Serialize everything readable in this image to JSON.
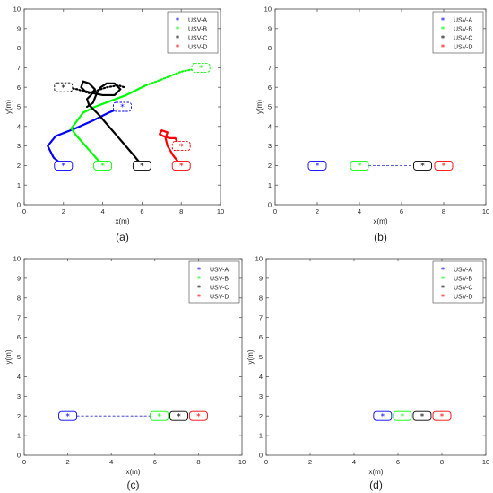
{
  "chart_data": [
    {
      "id": "a",
      "type": "line",
      "caption": "(a)",
      "xlabel": "x(m)",
      "ylabel": "y(m)",
      "xlim": [
        0,
        10
      ],
      "ylim": [
        0,
        10
      ],
      "xticks": [
        0,
        2,
        4,
        6,
        8,
        10
      ],
      "yticks": [
        0,
        1,
        2,
        3,
        4,
        5,
        6,
        7,
        8,
        9,
        10
      ],
      "grid": false,
      "legend_position": "top-right",
      "legend": [
        "USV-A",
        "USV-B",
        "USV-C",
        "USV-D"
      ],
      "series": [
        {
          "name": "USV-A",
          "color": "#0000ff",
          "style": "solid",
          "points": [
            [
              2,
              2
            ],
            [
              1.5,
              2.4
            ],
            [
              1.2,
              3.0
            ],
            [
              1.6,
              3.5
            ],
            [
              2.6,
              3.9
            ],
            [
              3.5,
              4.3
            ],
            [
              4.3,
              4.7
            ],
            [
              5.0,
              5.0
            ]
          ],
          "start": [
            2,
            2
          ],
          "end": [
            5,
            5
          ]
        },
        {
          "name": "USV-B",
          "color": "#00ff00",
          "style": "solid",
          "points": [
            [
              4,
              2
            ],
            [
              3.3,
              2.8
            ],
            [
              2.6,
              3.6
            ],
            [
              2.4,
              3.9
            ],
            [
              2.7,
              4.3
            ],
            [
              3.0,
              4.7
            ],
            [
              3.6,
              5.0
            ],
            [
              4.4,
              5.3
            ],
            [
              5.2,
              5.6
            ],
            [
              6.2,
              6.1
            ]
          ],
          "dotted_points": [
            [
              6.2,
              6.1
            ],
            [
              7.0,
              6.4
            ],
            [
              8.0,
              6.8
            ],
            [
              9.0,
              7.0
            ]
          ],
          "start": [
            4,
            2
          ],
          "end": [
            9,
            7
          ]
        },
        {
          "name": "USV-C",
          "color": "#000000",
          "style": "solid",
          "points": [
            [
              6,
              2
            ],
            [
              5.6,
              2.5
            ],
            [
              5.0,
              3.2
            ],
            [
              4.4,
              3.9
            ],
            [
              3.8,
              4.6
            ],
            [
              3.3,
              5.1
            ],
            [
              3.2,
              5.4
            ],
            [
              3.4,
              5.6
            ],
            [
              3.6,
              5.9
            ],
            [
              3.3,
              6.2
            ],
            [
              3.0,
              6.3
            ],
            [
              2.9,
              6.0
            ],
            [
              3.1,
              5.8
            ],
            [
              3.5,
              5.7
            ],
            [
              4.0,
              5.6
            ],
            [
              4.6,
              5.6
            ],
            [
              4.9,
              5.9
            ],
            [
              4.6,
              6.2
            ],
            [
              4.2,
              6.2
            ],
            [
              3.9,
              6.0
            ],
            [
              3.7,
              5.7
            ],
            [
              3.5,
              5.2
            ],
            [
              3.2,
              5.0
            ]
          ],
          "dotted_points": [
            [
              2,
              6
            ],
            [
              2.7,
              5.9
            ],
            [
              3.3,
              5.7
            ],
            [
              4.2,
              6.0
            ],
            [
              4.8,
              6.1
            ],
            [
              5.1,
              6.0
            ]
          ],
          "start": [
            6,
            2
          ],
          "end": [
            2,
            6
          ]
        },
        {
          "name": "USV-D",
          "color": "#ff0000",
          "style": "solid",
          "points": [
            [
              8,
              2
            ],
            [
              7.6,
              2.5
            ],
            [
              7.3,
              3.0
            ],
            [
              7.2,
              3.4
            ],
            [
              7.3,
              3.7
            ],
            [
              7.0,
              3.8
            ],
            [
              6.9,
              3.6
            ],
            [
              7.1,
              3.5
            ],
            [
              7.4,
              3.4
            ],
            [
              7.7,
              3.4
            ],
            [
              7.8,
              3.2
            ],
            [
              7.8,
              3.0
            ],
            [
              8.0,
              3.0
            ]
          ],
          "start": [
            8,
            2
          ],
          "end": [
            8,
            3
          ]
        }
      ],
      "boats": [
        {
          "color": "#0000ff",
          "x": 2,
          "y": 2,
          "style": "solid"
        },
        {
          "color": "#00ff00",
          "x": 4,
          "y": 2,
          "style": "solid"
        },
        {
          "color": "#000000",
          "x": 6,
          "y": 2,
          "style": "solid"
        },
        {
          "color": "#ff0000",
          "x": 8,
          "y": 2,
          "style": "solid"
        },
        {
          "color": "#0000ff",
          "x": 5,
          "y": 5,
          "style": "dashed"
        },
        {
          "color": "#00ff00",
          "x": 9,
          "y": 7,
          "style": "dashed"
        },
        {
          "color": "#000000",
          "x": 2,
          "y": 6,
          "style": "dashed"
        },
        {
          "color": "#ff0000",
          "x": 8,
          "y": 3,
          "style": "dashed"
        }
      ],
      "links": []
    },
    {
      "id": "b",
      "type": "scatter",
      "caption": "(b)",
      "xlabel": "x(m)",
      "ylabel": "y(m)",
      "xlim": [
        0,
        10
      ],
      "ylim": [
        0,
        10
      ],
      "xticks": [
        0,
        2,
        4,
        6,
        8,
        10
      ],
      "yticks": [
        0,
        1,
        2,
        3,
        4,
        5,
        6,
        7,
        8,
        9,
        10
      ],
      "grid": false,
      "legend_position": "top-right",
      "legend": [
        "USV-A",
        "USV-B",
        "USV-C",
        "USV-D"
      ],
      "series": [],
      "boats": [
        {
          "color": "#0000ff",
          "x": 2,
          "y": 2,
          "style": "solid"
        },
        {
          "color": "#00ff00",
          "x": 4,
          "y": 2,
          "style": "solid"
        },
        {
          "color": "#000000",
          "x": 7,
          "y": 2,
          "style": "solid"
        },
        {
          "color": "#ff0000",
          "x": 8,
          "y": 2,
          "style": "solid"
        }
      ],
      "links": [
        [
          4,
          7,
          2
        ]
      ]
    },
    {
      "id": "c",
      "type": "scatter",
      "caption": "(c)",
      "xlabel": "x(m)",
      "ylabel": "y(m)",
      "xlim": [
        0,
        10
      ],
      "ylim": [
        0,
        10
      ],
      "xticks": [
        0,
        2,
        4,
        6,
        8,
        10
      ],
      "yticks": [
        0,
        1,
        2,
        3,
        4,
        5,
        6,
        7,
        8,
        9,
        10
      ],
      "grid": false,
      "legend_position": "top-right",
      "legend": [
        "USV-A",
        "USV-B",
        "USV-C",
        "USV-D"
      ],
      "series": [],
      "boats": [
        {
          "color": "#0000ff",
          "x": 2,
          "y": 2,
          "style": "solid"
        },
        {
          "color": "#00ff00",
          "x": 6.2,
          "y": 2,
          "style": "solid"
        },
        {
          "color": "#000000",
          "x": 7.1,
          "y": 2,
          "style": "solid"
        },
        {
          "color": "#ff0000",
          "x": 8,
          "y": 2,
          "style": "solid"
        }
      ],
      "links": [
        [
          2,
          6.2,
          2
        ]
      ]
    },
    {
      "id": "d",
      "type": "scatter",
      "caption": "(d)",
      "xlabel": "x(m)",
      "ylabel": "y(m)",
      "xlim": [
        0,
        10
      ],
      "ylim": [
        0,
        10
      ],
      "xticks": [
        0,
        2,
        4,
        6,
        8,
        10
      ],
      "yticks": [
        0,
        1,
        2,
        3,
        4,
        5,
        6,
        7,
        8,
        9,
        10
      ],
      "grid": false,
      "legend_position": "top-right",
      "legend": [
        "USV-A",
        "USV-B",
        "USV-C",
        "USV-D"
      ],
      "series": [],
      "boats": [
        {
          "color": "#0000ff",
          "x": 5.3,
          "y": 2,
          "style": "solid"
        },
        {
          "color": "#00ff00",
          "x": 6.2,
          "y": 2,
          "style": "solid"
        },
        {
          "color": "#000000",
          "x": 7.1,
          "y": 2,
          "style": "solid"
        },
        {
          "color": "#ff0000",
          "x": 8,
          "y": 2,
          "style": "solid"
        }
      ],
      "links": []
    }
  ],
  "legend_colors": [
    "#0000ff",
    "#00ff00",
    "#000000",
    "#ff0000"
  ]
}
